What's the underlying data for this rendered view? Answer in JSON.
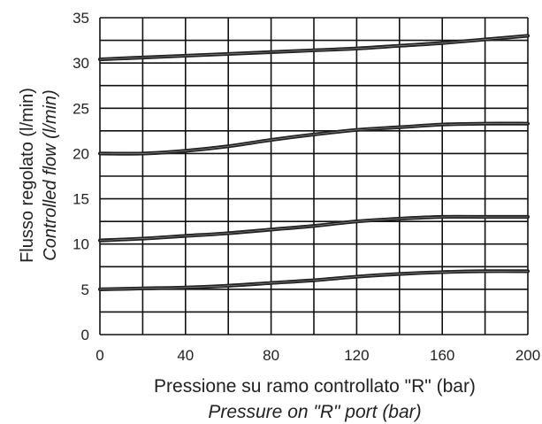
{
  "chart_data": {
    "type": "line",
    "xlabel": "Pressione su ramo controllato \"R\" (bar)",
    "xlabel_en": "Pressure on \"R\" port (bar)",
    "ylabel": "Flusso regolato (l/min)",
    "ylabel_en": "Controlled flow (l/min)",
    "xlim": [
      0,
      200
    ],
    "ylim": [
      0,
      35
    ],
    "xticks": [
      "0",
      "40",
      "80",
      "120",
      "160",
      "200"
    ],
    "yticks": [
      "0",
      "5",
      "10",
      "15",
      "20",
      "25",
      "30",
      "35"
    ],
    "grid": true,
    "x": [
      0,
      20,
      40,
      60,
      80,
      100,
      120,
      140,
      160,
      180,
      200
    ],
    "series": [
      {
        "values": [
          30.4,
          30.6,
          30.8,
          31.0,
          31.2,
          31.4,
          31.6,
          31.9,
          32.2,
          32.6,
          33.0
        ]
      },
      {
        "values": [
          20.0,
          20.0,
          20.3,
          20.8,
          21.5,
          22.1,
          22.6,
          22.9,
          23.2,
          23.3,
          23.3
        ]
      },
      {
        "values": [
          10.4,
          10.6,
          10.9,
          11.2,
          11.6,
          12.0,
          12.5,
          12.8,
          13.0,
          13.0,
          13.0
        ]
      },
      {
        "values": [
          5.0,
          5.1,
          5.2,
          5.4,
          5.7,
          6.0,
          6.4,
          6.7,
          6.9,
          7.0,
          7.0
        ]
      }
    ]
  }
}
